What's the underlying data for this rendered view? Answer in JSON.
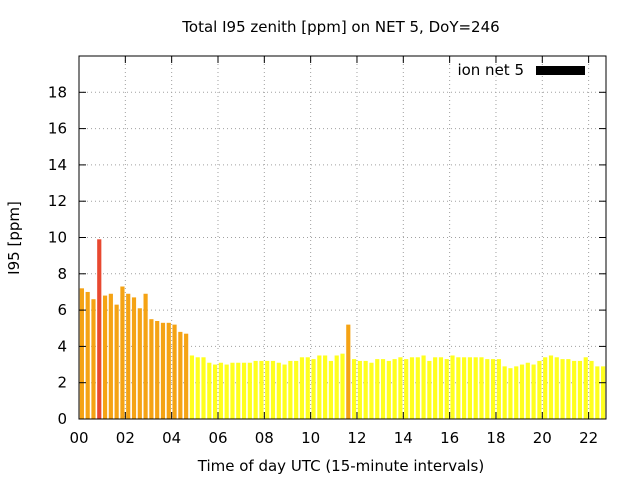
{
  "chart_data": {
    "type": "bar",
    "title": "Total I95 zenith [ppm] on NET 5, DoY=246",
    "xlabel": "Time of day UTC (15-minute intervals)",
    "ylabel": "I95 [ppm]",
    "xlim": [
      0,
      22.75
    ],
    "ylim": [
      0,
      20
    ],
    "xticks": [
      "00",
      "02",
      "04",
      "06",
      "08",
      "10",
      "12",
      "14",
      "16",
      "18",
      "20",
      "22"
    ],
    "yticks": [
      "0",
      "2",
      "4",
      "6",
      "8",
      "10",
      "12",
      "14",
      "16",
      "18"
    ],
    "grid": true,
    "legend": {
      "label": "ion net 5",
      "position": "top-right",
      "color": "#000000"
    },
    "bar_interval_hours": 0.25,
    "x": [
      0.0,
      0.25,
      0.5,
      0.75,
      1.0,
      1.25,
      1.5,
      1.75,
      2.0,
      2.25,
      2.5,
      2.75,
      3.0,
      3.25,
      3.5,
      3.75,
      4.0,
      4.25,
      4.5,
      4.75,
      5.0,
      5.25,
      5.5,
      5.75,
      6.0,
      6.25,
      6.5,
      6.75,
      7.0,
      7.25,
      7.5,
      7.75,
      8.0,
      8.25,
      8.5,
      8.75,
      9.0,
      9.25,
      9.5,
      9.75,
      10.0,
      10.25,
      10.5,
      10.75,
      11.0,
      11.25,
      11.5,
      11.75,
      12.0,
      12.25,
      12.5,
      12.75,
      13.0,
      13.25,
      13.5,
      13.75,
      14.0,
      14.25,
      14.5,
      14.75,
      15.0,
      15.25,
      15.5,
      15.75,
      16.0,
      16.25,
      16.5,
      16.75,
      17.0,
      17.25,
      17.5,
      17.75,
      18.0,
      18.25,
      18.5,
      18.75,
      19.0,
      19.25,
      19.5,
      19.75,
      20.0,
      20.25,
      20.5,
      20.75,
      21.0,
      21.25,
      21.5,
      21.75,
      22.0,
      22.25,
      22.5
    ],
    "values": [
      7.2,
      7.0,
      6.6,
      9.9,
      6.8,
      6.9,
      6.3,
      7.3,
      6.9,
      6.7,
      6.1,
      6.9,
      5.5,
      5.4,
      5.3,
      5.3,
      5.2,
      4.8,
      4.7,
      3.5,
      3.4,
      3.4,
      3.1,
      3.0,
      3.1,
      3.0,
      3.1,
      3.1,
      3.1,
      3.1,
      3.2,
      3.2,
      3.2,
      3.2,
      3.1,
      3.0,
      3.2,
      3.2,
      3.4,
      3.4,
      3.3,
      3.5,
      3.5,
      3.2,
      3.5,
      3.6,
      5.2,
      3.3,
      3.2,
      3.2,
      3.1,
      3.3,
      3.3,
      3.2,
      3.3,
      3.4,
      3.3,
      3.4,
      3.4,
      3.5,
      3.2,
      3.4,
      3.4,
      3.3,
      3.5,
      3.4,
      3.4,
      3.4,
      3.4,
      3.4,
      3.3,
      3.3,
      3.3,
      2.9,
      2.8,
      2.9,
      3.0,
      3.1,
      3.0,
      3.2,
      3.4,
      3.5,
      3.4,
      3.3,
      3.3,
      3.2,
      3.2,
      3.4,
      3.2,
      2.9,
      2.9
    ],
    "colors": {
      "high": "#e84830",
      "mid": "#f5a314",
      "low": "#ffff1e"
    }
  }
}
